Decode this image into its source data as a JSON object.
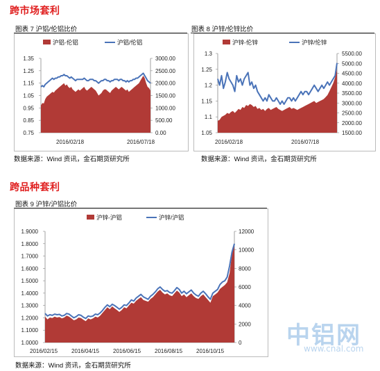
{
  "sections": {
    "cross_market": "跨市场套利",
    "cross_variety": "跨品种套利"
  },
  "figures": {
    "fig7": {
      "caption": "图表 7 沪铝/伦铝比价",
      "source": "数据来源：Wind 资讯，金石期货研究所"
    },
    "fig8": {
      "caption": "图表 8 沪锌/伦锌比价",
      "source": "数据来源：Wind 资讯，金石期货研究所"
    },
    "fig9": {
      "caption": "图表 9 沪锌/沪铝比价",
      "source": "数据来源：Wind 资讯，金石期货研究所"
    }
  },
  "watermark": {
    "brand": "中铝网",
    "url": "www.cnal.com"
  },
  "chart_data": [
    {
      "id": "fig7",
      "type": "area+line",
      "title": "",
      "x_ticks": [
        "2016/02/18",
        "2016/07/18"
      ],
      "y_left": {
        "ticks": [
          "1.35",
          "1.25",
          "1.15",
          "1.05",
          "0.95",
          "0.85",
          "0.75"
        ],
        "min": 0.75,
        "max": 1.35
      },
      "y_right": {
        "ticks": [
          "3000.00",
          "2500.00",
          "2000.00",
          "1500.00",
          "1000.00",
          "500.00",
          "0.00"
        ],
        "min": 0,
        "max": 3000
      },
      "legend_position": "top",
      "series": [
        {
          "name": "沪铝-伦铝",
          "kind": "area",
          "axis": "right",
          "color": "#b13a36",
          "values": [
            1100,
            1200,
            1180,
            1350,
            1450,
            1500,
            1550,
            1600,
            1650,
            1620,
            1700,
            1750,
            1800,
            1850,
            1900,
            1950,
            2000,
            1900,
            1950,
            1850,
            1800,
            1850,
            1750,
            1700,
            1650,
            1700,
            1750,
            1700,
            1750,
            1800,
            1850,
            1750,
            1700,
            1750,
            1800,
            1850,
            1800,
            1750,
            1700,
            1600,
            1500,
            1550,
            1600,
            1700,
            1750,
            1750,
            1700,
            1650,
            1600,
            1700,
            1750,
            1800,
            1850,
            1800,
            1750,
            1800,
            1850,
            1800,
            1750,
            1700,
            1750,
            1650,
            1700,
            1750,
            1800,
            1850,
            1900,
            1950,
            2000,
            2100,
            2200,
            2300,
            2200,
            2000,
            1850,
            1800,
            1700
          ]
        },
        {
          "name": "沪铝/伦铝",
          "kind": "line",
          "axis": "left",
          "color": "#4a73b8",
          "values": [
            1.12,
            1.13,
            1.12,
            1.14,
            1.15,
            1.16,
            1.17,
            1.18,
            1.19,
            1.18,
            1.19,
            1.19,
            1.2,
            1.2,
            1.21,
            1.21,
            1.22,
            1.21,
            1.21,
            1.2,
            1.19,
            1.2,
            1.19,
            1.18,
            1.17,
            1.18,
            1.18,
            1.18,
            1.18,
            1.18,
            1.19,
            1.18,
            1.17,
            1.17,
            1.18,
            1.18,
            1.18,
            1.17,
            1.17,
            1.16,
            1.15,
            1.16,
            1.17,
            1.17,
            1.18,
            1.18,
            1.17,
            1.17,
            1.16,
            1.17,
            1.17,
            1.18,
            1.18,
            1.18,
            1.17,
            1.18,
            1.18,
            1.17,
            1.17,
            1.16,
            1.17,
            1.16,
            1.17,
            1.17,
            1.18,
            1.18,
            1.19,
            1.19,
            1.2,
            1.21,
            1.22,
            1.23,
            1.21,
            1.19,
            1.17,
            1.16,
            1.15
          ]
        }
      ]
    },
    {
      "id": "fig8",
      "type": "area+line",
      "title": "",
      "x_ticks": [
        "2016/02/18",
        "2016/07/18"
      ],
      "y_left": {
        "ticks": [
          "1.3",
          "1.25",
          "1.2",
          "1.15",
          "1.1",
          "1.05"
        ],
        "min": 1.05,
        "max": 1.3
      },
      "y_right": {
        "ticks": [
          "5500.00",
          "5000.00",
          "4500.00",
          "4000.00",
          "3500.00",
          "3000.00",
          "2500.00",
          "2000.00",
          "1500.00"
        ],
        "min": 1500,
        "max": 5500
      },
      "legend_position": "top",
      "series": [
        {
          "name": "沪锌-伦锌",
          "kind": "area",
          "axis": "right",
          "color": "#b13a36",
          "values": [
            2100,
            2150,
            2300,
            2350,
            2400,
            2500,
            2450,
            2550,
            2600,
            2500,
            2600,
            2700,
            2650,
            2800,
            2750,
            2900,
            2850,
            2950,
            2900,
            2800,
            2850,
            2700,
            2750,
            2650,
            2700,
            2600,
            2700,
            2750,
            2650,
            2700,
            2750,
            2800,
            2700,
            2650,
            2600,
            2650,
            2700,
            2750,
            2800,
            2700,
            2750,
            2700,
            2650,
            2700,
            2750,
            2800,
            2850,
            2900,
            2950,
            3000,
            3050,
            3100,
            3000,
            3050,
            3100,
            3150,
            3200,
            3300,
            3400,
            3600,
            3800,
            4000,
            4300,
            4700
          ]
        },
        {
          "name": "沪锌/伦锌",
          "kind": "line",
          "axis": "left",
          "color": "#4a73b8",
          "values": [
            1.22,
            1.2,
            1.23,
            1.19,
            1.21,
            1.24,
            1.22,
            1.21,
            1.2,
            1.18,
            1.23,
            1.21,
            1.22,
            1.2,
            1.22,
            1.23,
            1.24,
            1.2,
            1.21,
            1.19,
            1.2,
            1.18,
            1.17,
            1.16,
            1.15,
            1.16,
            1.15,
            1.17,
            1.16,
            1.15,
            1.15,
            1.16,
            1.15,
            1.14,
            1.15,
            1.14,
            1.15,
            1.16,
            1.16,
            1.15,
            1.16,
            1.15,
            1.16,
            1.17,
            1.18,
            1.17,
            1.18,
            1.18,
            1.17,
            1.18,
            1.19,
            1.2,
            1.19,
            1.18,
            1.19,
            1.2,
            1.19,
            1.2,
            1.21,
            1.2,
            1.21,
            1.22,
            1.23,
            1.27
          ]
        }
      ]
    },
    {
      "id": "fig9",
      "type": "area+line",
      "title": "",
      "x_ticks": [
        "2016/02/15",
        "2016/04/15",
        "2016/06/15",
        "2016/08/15",
        "2016/10/15"
      ],
      "y_left": {
        "ticks": [
          "1.9000",
          "1.8000",
          "1.7000",
          "1.6000",
          "1.5000",
          "1.4000",
          "1.3000",
          "1.2000",
          "1.1000",
          "1.0000"
        ],
        "min": 1.0,
        "max": 1.9
      },
      "y_right": {
        "ticks": [
          "12000",
          "10000",
          "8000",
          "6000",
          "4000",
          "2000",
          "0"
        ],
        "min": 0,
        "max": 12000
      },
      "legend_position": "top",
      "series": [
        {
          "name": "沪锌-沪铝",
          "kind": "area",
          "axis": "right",
          "color": "#b13a36",
          "values": [
            2800,
            2500,
            2700,
            2650,
            2800,
            2700,
            2750,
            2600,
            2700,
            2900,
            2800,
            2600,
            2400,
            2500,
            2700,
            2650,
            2450,
            2300,
            2600,
            2500,
            2600,
            2800,
            2700,
            2900,
            3200,
            3500,
            3800,
            3600,
            3900,
            3700,
            3500,
            3300,
            3500,
            3800,
            3700,
            4000,
            4300,
            4200,
            4500,
            4700,
            4900,
            4600,
            4500,
            4400,
            4700,
            4900,
            5200,
            5500,
            5700,
            5400,
            5200,
            5300,
            5100,
            5000,
            5300,
            5600,
            5400,
            5000,
            5200,
            4900,
            5100,
            5300,
            5000,
            4800,
            4700,
            5000,
            5200,
            4900,
            4600,
            4300,
            5000,
            5200,
            5400,
            5800,
            6000,
            6200,
            6500,
            7500,
            9500,
            10500
          ]
        },
        {
          "name": "沪锌/沪铝",
          "kind": "line",
          "axis": "left",
          "color": "#4a73b8",
          "values": [
            1.235,
            1.215,
            1.225,
            1.22,
            1.23,
            1.225,
            1.228,
            1.215,
            1.22,
            1.235,
            1.23,
            1.215,
            1.2,
            1.21,
            1.225,
            1.22,
            1.205,
            1.195,
            1.215,
            1.21,
            1.215,
            1.23,
            1.225,
            1.24,
            1.26,
            1.285,
            1.305,
            1.29,
            1.31,
            1.3,
            1.285,
            1.27,
            1.285,
            1.305,
            1.3,
            1.32,
            1.345,
            1.335,
            1.36,
            1.375,
            1.39,
            1.37,
            1.36,
            1.35,
            1.375,
            1.39,
            1.41,
            1.435,
            1.45,
            1.43,
            1.415,
            1.42,
            1.405,
            1.4,
            1.42,
            1.445,
            1.43,
            1.4,
            1.415,
            1.395,
            1.41,
            1.425,
            1.4,
            1.385,
            1.375,
            1.4,
            1.415,
            1.395,
            1.37,
            1.35,
            1.4,
            1.415,
            1.43,
            1.47,
            1.49,
            1.5,
            1.53,
            1.62,
            1.73,
            1.8
          ]
        }
      ]
    }
  ]
}
